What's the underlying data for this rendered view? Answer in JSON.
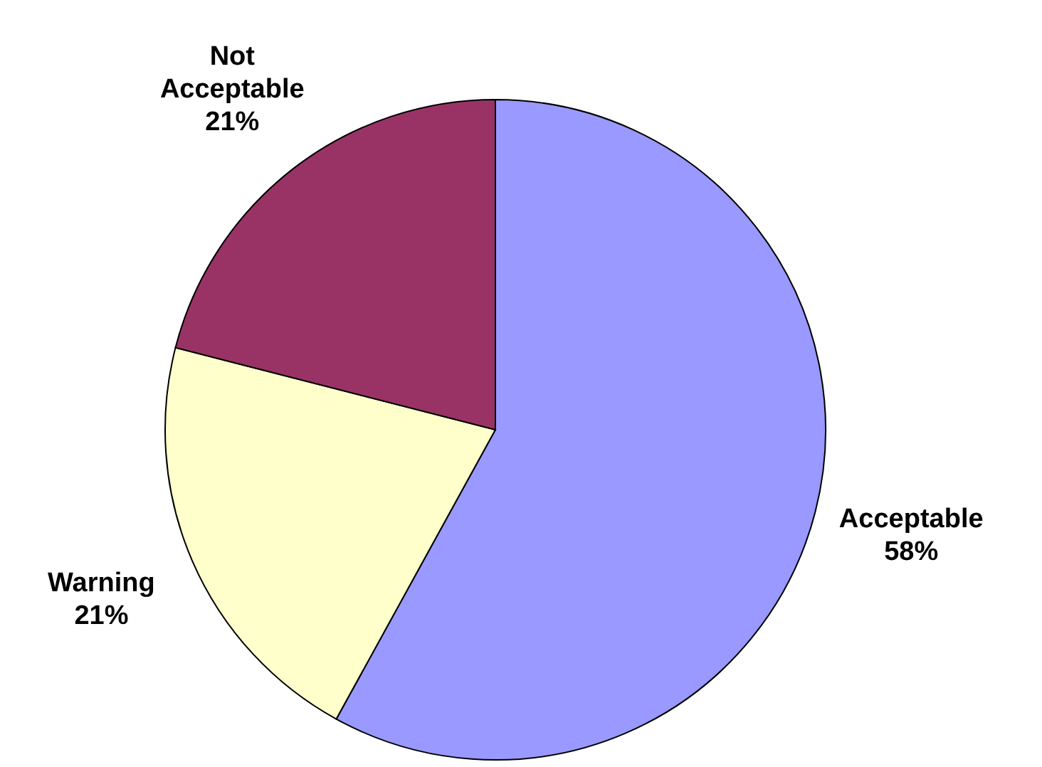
{
  "chart_data": {
    "type": "pie",
    "categories": [
      "Acceptable",
      "Warning",
      "Not Acceptable"
    ],
    "values": [
      58,
      21,
      21
    ],
    "colors": [
      "#9999ff",
      "#ffffcc",
      "#993366"
    ],
    "value_labels": [
      "58%",
      "21%",
      "21%"
    ]
  }
}
